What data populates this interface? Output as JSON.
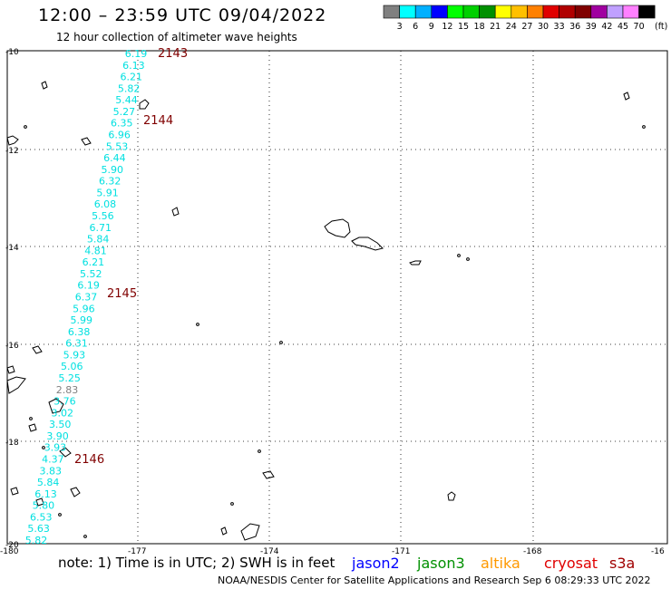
{
  "header": {
    "title": "12:00 – 23:59 UTC 09/04/2022",
    "subtitle": "12 hour collection of altimeter wave heights"
  },
  "scale": {
    "colors": [
      "#808080",
      "#00ffff",
      "#00b0ff",
      "#0000ff",
      "#00ff00",
      "#00d000",
      "#009000",
      "#ffff00",
      "#ffc000",
      "#ff8000",
      "#e00000",
      "#b00000",
      "#800000",
      "#a000a0",
      "#c0a0ff",
      "#ff80ff",
      "#000000"
    ],
    "labels": [
      "3",
      "6",
      "9",
      "12",
      "15",
      "18",
      "21",
      "24",
      "27",
      "30",
      "33",
      "36",
      "39",
      "42",
      "45",
      "70"
    ],
    "unit": "(ft)"
  },
  "axes": {
    "lat_labels": [
      "-10",
      "-12",
      "-14",
      "-16",
      "-18",
      "-20"
    ],
    "lon_labels": [
      "-180",
      "-177",
      "-174",
      "-171",
      "-168",
      "-16"
    ]
  },
  "tracks": [
    {
      "label": "2143"
    },
    {
      "label": "2144"
    },
    {
      "label": "2145"
    },
    {
      "label": "2146"
    }
  ],
  "heights": {
    "values": [
      "6.19",
      "6.13",
      "6.21",
      "5.82",
      "5.44",
      "5.27",
      "6.35",
      "6.96",
      "5.53",
      "6.44",
      "5.90",
      "6.32",
      "5.91",
      "6.08",
      "5.56",
      "6.71",
      "5.84",
      "4.81",
      "6.21",
      "5.52",
      "6.19",
      "6.37",
      "5.96",
      "5.99",
      "6.38",
      "6.31",
      "5.93",
      "5.06",
      "5.25",
      "2.83",
      "3.76",
      "3.02",
      "3.50",
      "3.90",
      "3.93",
      "4.37",
      "3.83",
      "5.84",
      "6.13",
      "5.80",
      "6.53",
      "5.63",
      "5.82"
    ]
  },
  "footer": {
    "note": "note:  1) Time is in UTC;  2) SWH is in feet",
    "satellites": [
      {
        "name": "jason2",
        "color": "#0000ff"
      },
      {
        "name": "jason3",
        "color": "#009000"
      },
      {
        "name": "altika",
        "color": "#ff9900"
      },
      {
        "name": "cryosat",
        "color": "#e00000"
      },
      {
        "name": "s3a",
        "color": "#a00000"
      }
    ],
    "credit": "NOAA/NESDIS Center for Satellite Applications and Research     Sep  6 08:29:33 UTC 2022"
  }
}
